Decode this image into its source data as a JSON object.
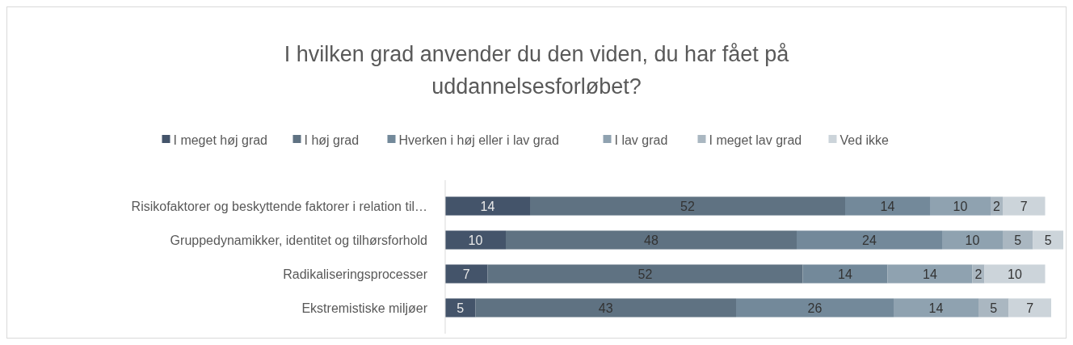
{
  "chart_data": {
    "type": "bar",
    "orientation": "horizontal",
    "stacked": true,
    "title": "I hvilken grad anvender du den viden, du har fået på uddannelsesforløbet?",
    "categories": [
      "Risikofaktorer og beskyttende faktorer i relation til…",
      "Gruppedynamikker, identitet og tilhørsforhold",
      "Radikaliseringsprocesser",
      "Ekstremistiske miljøer"
    ],
    "series": [
      {
        "name": "I meget høj grad",
        "color": "#44546a",
        "values": [
          14,
          10,
          7,
          5
        ]
      },
      {
        "name": "I høj grad",
        "color": "#5f7282",
        "values": [
          52,
          48,
          52,
          43
        ]
      },
      {
        "name": "Hverken i høj eller i lav grad",
        "color": "#73899a",
        "values": [
          14,
          24,
          14,
          26
        ]
      },
      {
        "name": "I lav grad",
        "color": "#8fa2b0",
        "values": [
          10,
          10,
          14,
          14
        ]
      },
      {
        "name": "I meget lav grad",
        "color": "#aab7c1",
        "values": [
          2,
          5,
          2,
          5
        ]
      },
      {
        "name": "Ved ikke",
        "color": "#ccd4da",
        "values": [
          7,
          5,
          10,
          7
        ]
      }
    ],
    "xlim": [
      0,
      102
    ],
    "data_labels": true,
    "legend": "top",
    "tick_labels": "y",
    "grid": false
  }
}
